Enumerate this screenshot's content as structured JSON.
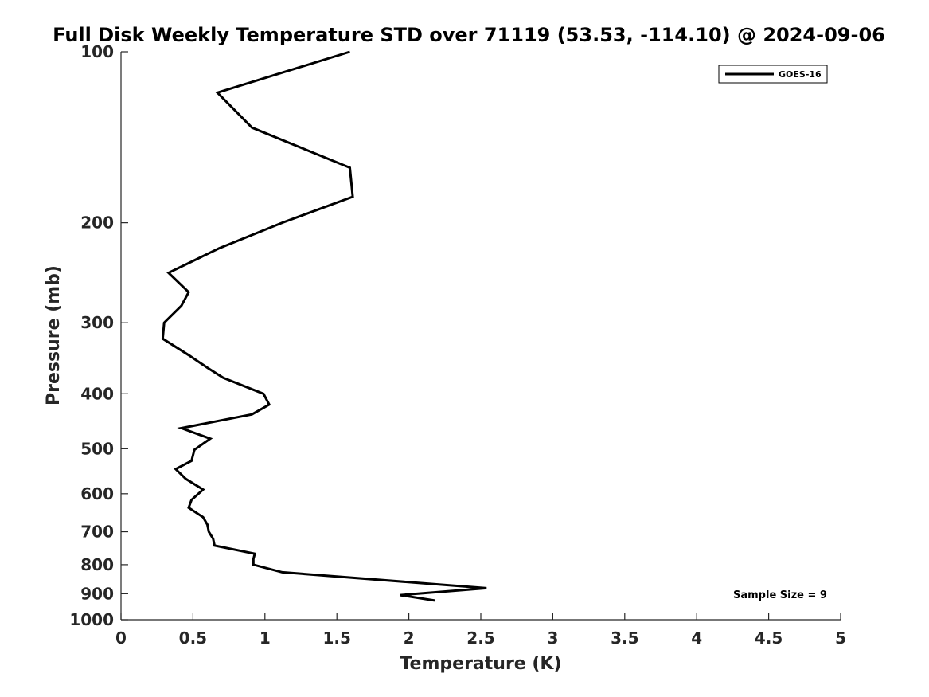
{
  "chart_data": {
    "type": "line",
    "title": "Full Disk Weekly Temperature STD over 71119 (53.53, -114.10) @ 2024-09-06",
    "xlabel": "Temperature (K)",
    "ylabel": "Pressure (mb)",
    "xlim": [
      0,
      5
    ],
    "ylim": [
      100,
      1000
    ],
    "y_scale": "log",
    "y_reversed": true,
    "x_ticks": [
      0,
      0.5,
      1,
      1.5,
      2,
      2.5,
      3,
      3.5,
      4,
      4.5,
      5
    ],
    "x_tick_labels": [
      "0",
      "0.5",
      "1",
      "1.5",
      "2",
      "2.5",
      "3",
      "3.5",
      "4",
      "4.5",
      "5"
    ],
    "y_ticks": [
      100,
      200,
      300,
      400,
      500,
      600,
      700,
      800,
      900,
      1000
    ],
    "y_tick_labels": [
      "100",
      "200",
      "300",
      "400",
      "500",
      "600",
      "700",
      "800",
      "900",
      "1000"
    ],
    "grid": false,
    "legend_position": "top-right",
    "series": [
      {
        "name": "GOES-16",
        "color": "#000000",
        "points": [
          {
            "x": 1.59,
            "y": 100
          },
          {
            "x": 0.67,
            "y": 118
          },
          {
            "x": 0.91,
            "y": 136
          },
          {
            "x": 1.59,
            "y": 160
          },
          {
            "x": 1.61,
            "y": 180
          },
          {
            "x": 1.12,
            "y": 200
          },
          {
            "x": 0.68,
            "y": 222
          },
          {
            "x": 0.33,
            "y": 245
          },
          {
            "x": 0.47,
            "y": 265
          },
          {
            "x": 0.42,
            "y": 280
          },
          {
            "x": 0.3,
            "y": 300
          },
          {
            "x": 0.29,
            "y": 320
          },
          {
            "x": 0.47,
            "y": 342
          },
          {
            "x": 0.6,
            "y": 360
          },
          {
            "x": 0.71,
            "y": 375
          },
          {
            "x": 0.99,
            "y": 400
          },
          {
            "x": 1.03,
            "y": 418
          },
          {
            "x": 0.91,
            "y": 435
          },
          {
            "x": 0.42,
            "y": 460
          },
          {
            "x": 0.62,
            "y": 480
          },
          {
            "x": 0.51,
            "y": 502
          },
          {
            "x": 0.49,
            "y": 525
          },
          {
            "x": 0.38,
            "y": 543
          },
          {
            "x": 0.45,
            "y": 565
          },
          {
            "x": 0.57,
            "y": 590
          },
          {
            "x": 0.49,
            "y": 615
          },
          {
            "x": 0.47,
            "y": 635
          },
          {
            "x": 0.57,
            "y": 660
          },
          {
            "x": 0.6,
            "y": 680
          },
          {
            "x": 0.61,
            "y": 700
          },
          {
            "x": 0.64,
            "y": 720
          },
          {
            "x": 0.65,
            "y": 740
          },
          {
            "x": 0.93,
            "y": 765
          },
          {
            "x": 0.92,
            "y": 782
          },
          {
            "x": 0.92,
            "y": 800
          },
          {
            "x": 1.12,
            "y": 825
          },
          {
            "x": 2.54,
            "y": 880
          },
          {
            "x": 1.94,
            "y": 905
          },
          {
            "x": 2.18,
            "y": 925
          }
        ]
      }
    ],
    "annotations": [
      {
        "text": "Sample Size = 9",
        "position": "bottom-right"
      }
    ]
  }
}
